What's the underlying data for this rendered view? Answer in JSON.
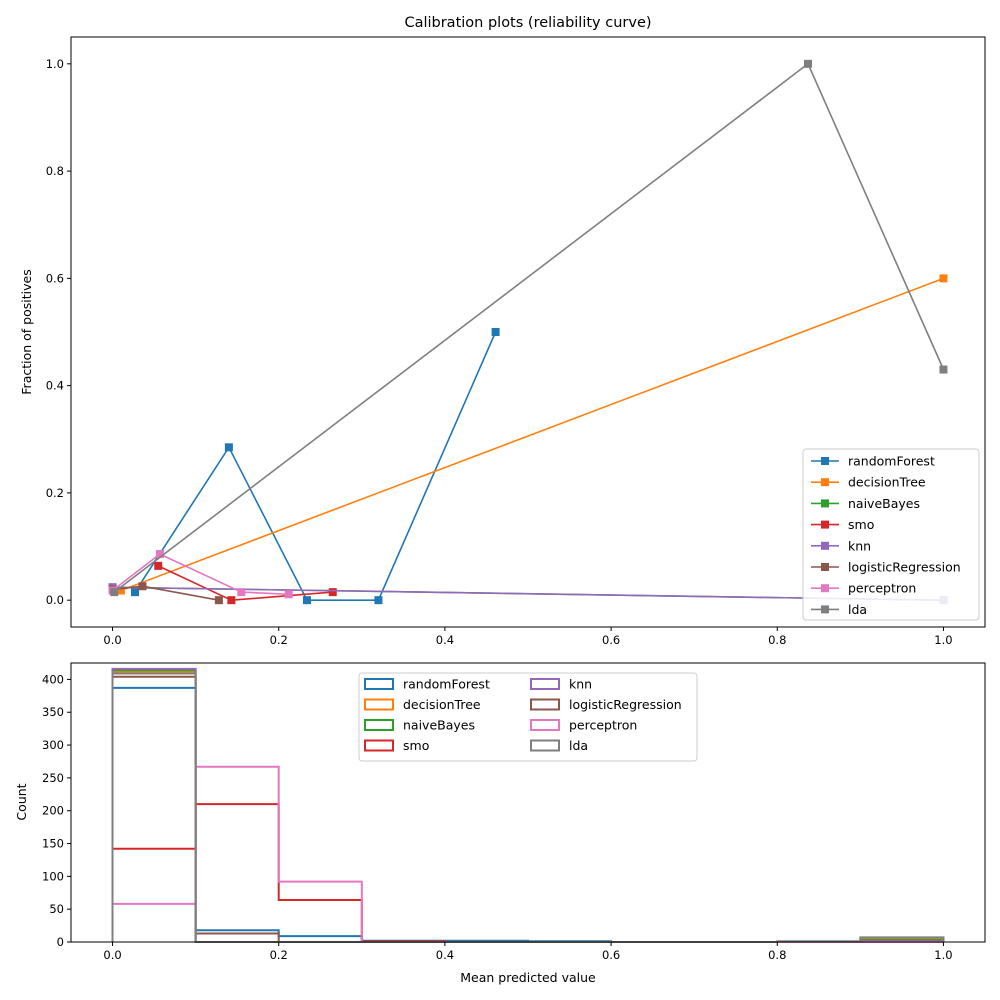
{
  "chart_data": [
    {
      "type": "line",
      "title": "Calibration plots  (reliability curve)",
      "xlabel": "",
      "ylabel": "Fraction of positives",
      "xlim": [
        -0.05,
        1.05
      ],
      "ylim": [
        -0.05,
        1.05
      ],
      "xticks": [
        "0.0",
        "0.2",
        "0.4",
        "0.6",
        "0.8",
        "1.0"
      ],
      "yticks": [
        "0.0",
        "0.2",
        "0.4",
        "0.6",
        "0.8",
        "1.0"
      ],
      "legend_position": "lower right",
      "marker": "square",
      "series": [
        {
          "name": "randomForest",
          "color": "#1f77b4",
          "points": [
            [
              0.027,
              0.015
            ],
            [
              0.14,
              0.285
            ],
            [
              0.234,
              0.0
            ],
            [
              0.32,
              0.0
            ],
            [
              0.461,
              0.5
            ]
          ]
        },
        {
          "name": "decisionTree",
          "color": "#ff7f0e",
          "points": [
            [
              0.01,
              0.018
            ],
            [
              1.0,
              0.6
            ]
          ]
        },
        {
          "name": "naiveBayes",
          "color": "#2ca02c",
          "points": [
            [
              0.0,
              0.024
            ],
            [
              1.0,
              0.0
            ]
          ]
        },
        {
          "name": "smo",
          "color": "#d62728",
          "points": [
            [
              0.055,
              0.064
            ],
            [
              0.143,
              0.0
            ],
            [
              0.265,
              0.015
            ]
          ]
        },
        {
          "name": "knn",
          "color": "#9467bd",
          "points": [
            [
              0.0,
              0.024
            ],
            [
              1.0,
              0.0
            ]
          ]
        },
        {
          "name": "logisticRegression",
          "color": "#8c564b",
          "points": [
            [
              0.0,
              0.02
            ],
            [
              0.036,
              0.026
            ],
            [
              0.128,
              0.0
            ]
          ]
        },
        {
          "name": "perceptron",
          "color": "#e377c2",
          "points": [
            [
              0.0,
              0.018
            ],
            [
              0.057,
              0.086
            ],
            [
              0.155,
              0.015
            ],
            [
              0.212,
              0.011
            ]
          ]
        },
        {
          "name": "lda",
          "color": "#7f7f7f",
          "points": [
            [
              0.002,
              0.015
            ],
            [
              0.837,
              1.0
            ],
            [
              1.0,
              0.43
            ]
          ]
        }
      ]
    },
    {
      "type": "histogram",
      "title": "",
      "xlabel": "Mean predicted value",
      "ylabel": "Count",
      "xlim": [
        -0.05,
        1.05
      ],
      "ylim": [
        0,
        425
      ],
      "xticks": [
        "0.0",
        "0.2",
        "0.4",
        "0.6",
        "0.8",
        "1.0"
      ],
      "yticks": [
        "0",
        "50",
        "100",
        "150",
        "200",
        "250",
        "300",
        "350",
        "400"
      ],
      "legend_position": "upper center",
      "legend_columns": 2,
      "bin_edges": [
        0,
        0.1,
        0.2,
        0.3,
        0.4,
        0.5,
        0.6,
        0.7,
        0.8,
        0.9,
        1.0
      ],
      "series": [
        {
          "name": "randomForest",
          "color": "#1f77b4",
          "counts": [
            387,
            18,
            9,
            2,
            2,
            1,
            0,
            0,
            0,
            0
          ]
        },
        {
          "name": "decisionTree",
          "color": "#ff7f0e",
          "counts": [
            412,
            0,
            0,
            0,
            0,
            0,
            0,
            0,
            0,
            5
          ]
        },
        {
          "name": "naiveBayes",
          "color": "#2ca02c",
          "counts": [
            414,
            0,
            0,
            0,
            0,
            0,
            0,
            0,
            0,
            3
          ]
        },
        {
          "name": "smo",
          "color": "#d62728",
          "counts": [
            142,
            210,
            64,
            1,
            0,
            0,
            0,
            0,
            0,
            0
          ]
        },
        {
          "name": "knn",
          "color": "#9467bd",
          "counts": [
            416,
            0,
            0,
            0,
            0,
            0,
            0,
            0,
            0,
            1
          ]
        },
        {
          "name": "logisticRegression",
          "color": "#8c564b",
          "counts": [
            404,
            13,
            0,
            0,
            0,
            0,
            0,
            0,
            0,
            0
          ]
        },
        {
          "name": "perceptron",
          "color": "#e377c2",
          "counts": [
            58,
            267,
            92,
            0,
            0,
            0,
            0,
            0,
            0,
            0
          ]
        },
        {
          "name": "lda",
          "color": "#7f7f7f",
          "counts": [
            409,
            0,
            0,
            0,
            0,
            0,
            0,
            0,
            1,
            7
          ]
        }
      ]
    }
  ]
}
